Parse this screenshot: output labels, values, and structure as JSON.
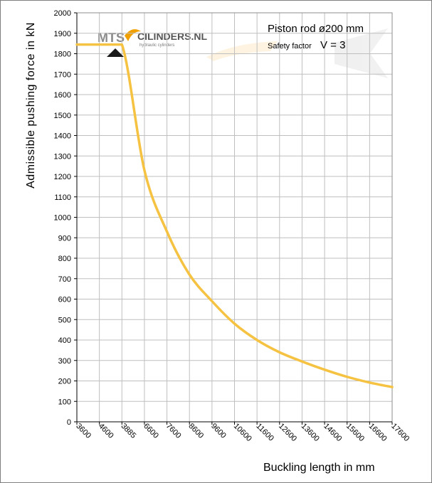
{
  "chart_data": {
    "type": "line",
    "title": "",
    "xlabel": "Buckling length in mm",
    "ylabel": "Admissible pushing force in kN",
    "x_tick_labels": [
      "3600",
      "4600",
      "3885",
      "6600",
      "7600",
      "8600",
      "9600",
      "10600",
      "11600",
      "12600",
      "13600",
      "14600",
      "15600",
      "16600",
      "17600"
    ],
    "y_ticks": [
      0,
      100,
      200,
      300,
      400,
      500,
      600,
      700,
      800,
      900,
      1000,
      1100,
      1200,
      1300,
      1400,
      1500,
      1600,
      1700,
      1800,
      1900,
      2000
    ],
    "ylim": [
      0,
      2000
    ],
    "grid": true,
    "series": [
      {
        "color": "#F5C242",
        "points": [
          {
            "x": "3600",
            "y": 1845
          },
          {
            "x": "4600",
            "y": 1845
          },
          {
            "x": "3885",
            "y": 1845
          },
          {
            "x": "6600",
            "y": 1230
          },
          {
            "x": "7600",
            "y": 930
          },
          {
            "x": "8600",
            "y": 720
          },
          {
            "x": "9600",
            "y": 590
          },
          {
            "x": "10600",
            "y": 480
          },
          {
            "x": "11600",
            "y": 400
          },
          {
            "x": "12600",
            "y": 340
          },
          {
            "x": "13600",
            "y": 295
          },
          {
            "x": "14600",
            "y": 255
          },
          {
            "x": "15600",
            "y": 220
          },
          {
            "x": "16600",
            "y": 192
          },
          {
            "x": "17600",
            "y": 170
          }
        ]
      }
    ],
    "annotations": {
      "heading": "Piston rod ø200 mm",
      "safety_label": "Safety factor",
      "safety_value": "V = 3"
    }
  },
  "logo": {
    "mts": "MTS",
    "cilinders": "CILINDERS.NL",
    "tagline": "hydraulic cylinders"
  },
  "colors": {
    "line": "#F5C242",
    "grid": "#bfbfbf",
    "axis": "#000000"
  }
}
